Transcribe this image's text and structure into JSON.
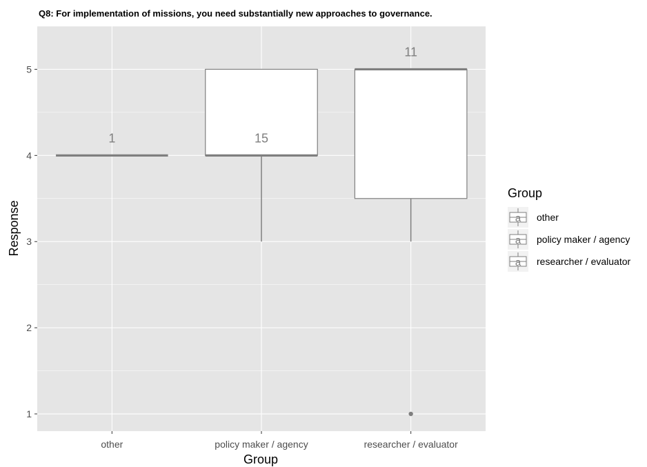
{
  "chart_data": {
    "type": "boxplot",
    "title": "Q8: For implementation of missions, you need substantially new approaches to governance.",
    "xlabel": "Group",
    "ylabel": "Response",
    "categories": [
      "other",
      "policy maker / agency",
      "researcher / evaluator"
    ],
    "ylim": [
      0.8,
      5.5
    ],
    "yticks": [
      1,
      2,
      3,
      4,
      5
    ],
    "grid": true,
    "legend_position": "right",
    "legend_title": "Group",
    "legend_entries": [
      "other",
      "policy maker / agency",
      "researcher / evaluator"
    ],
    "legend_key_glyph": "a",
    "colors": {
      "panel": "#e5e5e5",
      "grid": "#ffffff",
      "box_fill": "#ffffff",
      "box_line": "#7f7f7f",
      "count_text": "#7f7f7f"
    },
    "boxes": [
      {
        "group": "other",
        "lower_whisker": 4,
        "q1": 4,
        "median": 4,
        "q3": 4,
        "upper_whisker": 4,
        "outliers": [],
        "count_label": "1",
        "count_y": 4.2
      },
      {
        "group": "policy maker / agency",
        "lower_whisker": 3,
        "q1": 4,
        "median": 4,
        "q3": 5,
        "upper_whisker": 5,
        "outliers": [],
        "count_label": "15",
        "count_y": 4.2
      },
      {
        "group": "researcher / evaluator",
        "lower_whisker": 3,
        "q1": 3.5,
        "median": 5,
        "q3": 5,
        "upper_whisker": 5,
        "outliers": [
          1
        ],
        "count_label": "11",
        "count_y": 5.2
      }
    ]
  }
}
